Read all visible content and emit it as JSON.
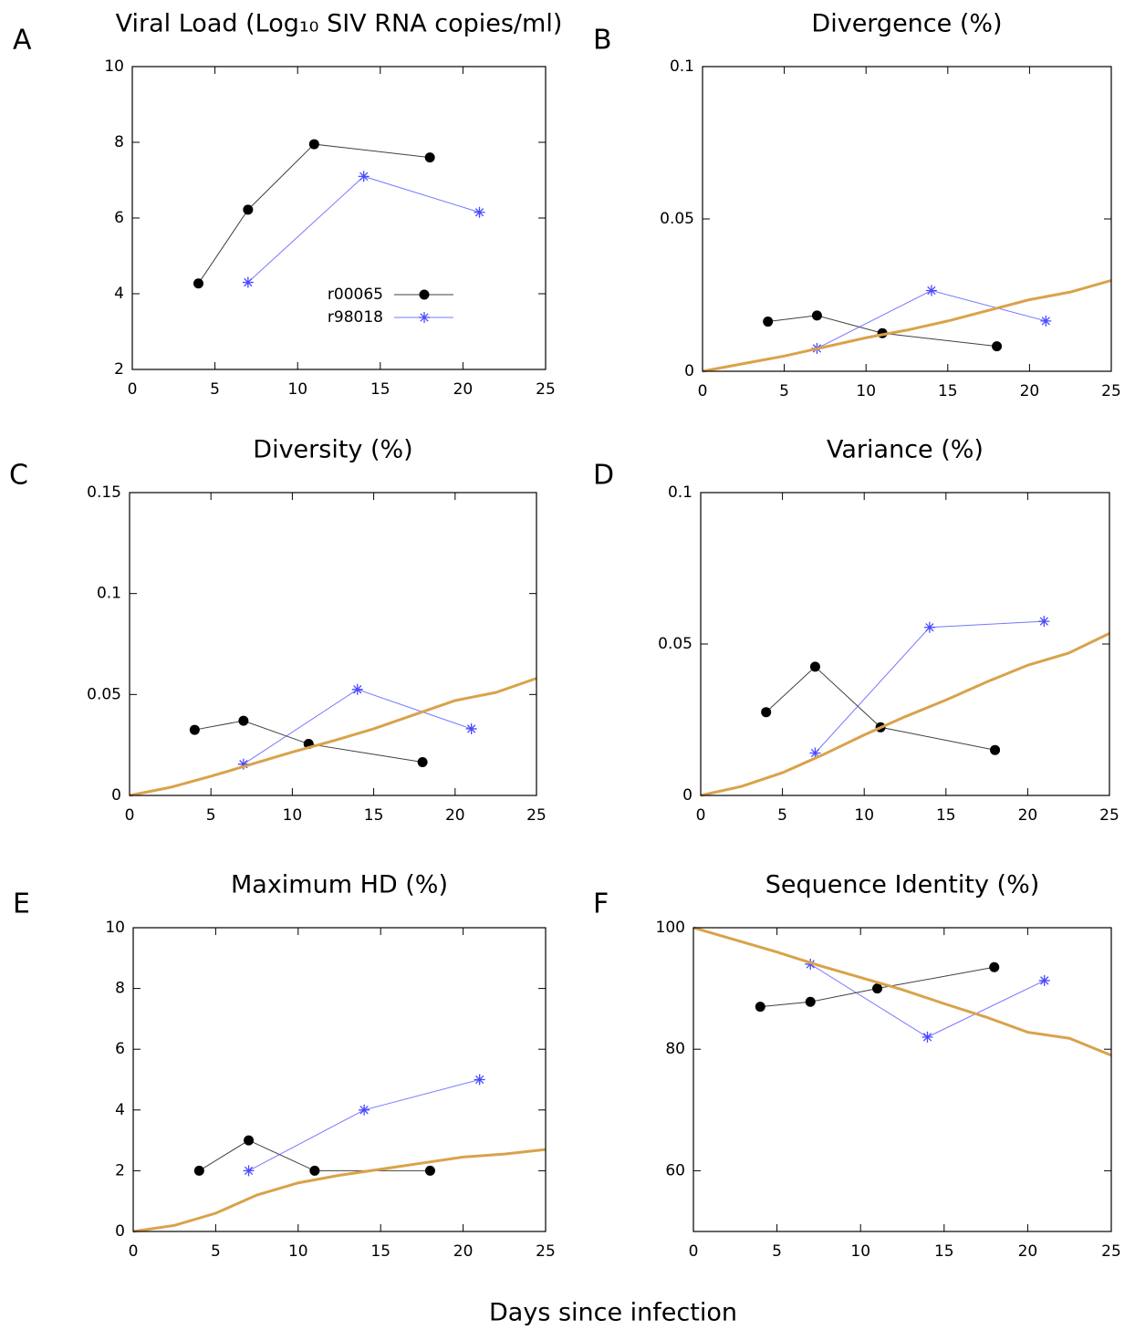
{
  "xlabel": "Days since infection",
  "chart_data": [
    {
      "type": "line",
      "panel": "A",
      "title": "Viral Load (Log₁₀ SIV RNA copies/ml)",
      "xlim": [
        0,
        25
      ],
      "xticks": [
        0,
        5,
        10,
        15,
        20,
        25
      ],
      "ylim": [
        2,
        10
      ],
      "yticks": [
        2,
        4,
        6,
        8,
        10
      ],
      "legend": "center",
      "series": [
        {
          "name": "r00065",
          "color": "#000000",
          "marker": "circle",
          "x": [
            4,
            7,
            11,
            18
          ],
          "values": [
            4.27,
            6.22,
            7.95,
            7.6
          ]
        },
        {
          "name": "r98018",
          "color": "#4a4aff",
          "marker": "star",
          "x": [
            7,
            14,
            21
          ],
          "values": [
            4.3,
            7.1,
            6.15
          ]
        }
      ]
    },
    {
      "type": "line",
      "panel": "B",
      "title": "Divergence (%)",
      "xlim": [
        0,
        25
      ],
      "xticks": [
        0,
        5,
        10,
        15,
        20,
        25
      ],
      "ylim": [
        0,
        0.1
      ],
      "yticks": [
        0,
        0.05,
        0.1
      ],
      "series": [
        {
          "color": "#000000",
          "marker": "circle",
          "x": [
            4,
            7,
            11,
            18
          ],
          "values": [
            0.0163,
            0.0183,
            0.0125,
            0.0082
          ]
        },
        {
          "color": "#4a4aff",
          "marker": "star",
          "x": [
            7,
            14,
            21
          ],
          "values": [
            0.0075,
            0.0265,
            0.0165
          ]
        },
        {
          "color": "#d9a24a",
          "marker": "none",
          "x": [
            0,
            2.5,
            5,
            7.5,
            10,
            12.5,
            15,
            17.5,
            20,
            22.5,
            25
          ],
          "values": [
            0,
            0.0025,
            0.005,
            0.008,
            0.011,
            0.0135,
            0.0165,
            0.02,
            0.0235,
            0.026,
            0.0298
          ]
        }
      ]
    },
    {
      "type": "line",
      "panel": "C",
      "title": "Diversity (%)",
      "xlim": [
        0,
        25
      ],
      "xticks": [
        0,
        5,
        10,
        15,
        20,
        25
      ],
      "ylim": [
        0,
        0.15
      ],
      "yticks": [
        0,
        0.05,
        0.1,
        0.15
      ],
      "series": [
        {
          "color": "#000000",
          "marker": "circle",
          "x": [
            4,
            7,
            11,
            18
          ],
          "values": [
            0.0325,
            0.037,
            0.0255,
            0.0165
          ]
        },
        {
          "color": "#4a4aff",
          "marker": "star",
          "x": [
            7,
            14,
            21
          ],
          "values": [
            0.0155,
            0.0525,
            0.033
          ]
        },
        {
          "color": "#d9a24a",
          "marker": "none",
          "x": [
            0,
            2.5,
            5,
            7.5,
            10,
            12.5,
            15,
            17.5,
            20,
            22.5,
            25
          ],
          "values": [
            0,
            0.004,
            0.0095,
            0.0155,
            0.0215,
            0.027,
            0.033,
            0.04,
            0.047,
            0.051,
            0.058
          ]
        }
      ]
    },
    {
      "type": "line",
      "panel": "D",
      "title": "Variance (%)",
      "xlim": [
        0,
        25
      ],
      "xticks": [
        0,
        5,
        10,
        15,
        20,
        25
      ],
      "ylim": [
        0,
        0.1
      ],
      "yticks": [
        0,
        0.05,
        0.1
      ],
      "series": [
        {
          "color": "#000000",
          "marker": "circle",
          "x": [
            4,
            7,
            11,
            18
          ],
          "values": [
            0.0275,
            0.0425,
            0.0225,
            0.015
          ]
        },
        {
          "color": "#4a4aff",
          "marker": "star",
          "x": [
            7,
            14,
            21
          ],
          "values": [
            0.014,
            0.0555,
            0.0575
          ]
        },
        {
          "color": "#d9a24a",
          "marker": "none",
          "x": [
            0,
            2.5,
            5,
            7.5,
            10,
            12.5,
            15,
            17.5,
            20,
            22.5,
            25
          ],
          "values": [
            0,
            0.003,
            0.0075,
            0.0135,
            0.02,
            0.026,
            0.0315,
            0.0375,
            0.043,
            0.047,
            0.0535
          ]
        }
      ]
    },
    {
      "type": "line",
      "panel": "E",
      "title": "Maximum HD (%)",
      "xlim": [
        0,
        25
      ],
      "xticks": [
        0,
        5,
        10,
        15,
        20,
        25
      ],
      "ylim": [
        0,
        10
      ],
      "yticks": [
        0,
        2,
        4,
        6,
        8,
        10
      ],
      "series": [
        {
          "color": "#000000",
          "marker": "circle",
          "x": [
            4,
            7,
            11,
            18
          ],
          "values": [
            2,
            3,
            2,
            2
          ]
        },
        {
          "color": "#4a4aff",
          "marker": "star",
          "x": [
            7,
            14,
            21
          ],
          "values": [
            2,
            4,
            5
          ]
        },
        {
          "color": "#d9a24a",
          "marker": "none",
          "x": [
            0,
            2.5,
            5,
            7.5,
            10,
            12.5,
            15,
            17.5,
            20,
            22.5,
            25
          ],
          "values": [
            0,
            0.2,
            0.6,
            1.2,
            1.6,
            1.85,
            2.05,
            2.25,
            2.45,
            2.55,
            2.7
          ]
        }
      ]
    },
    {
      "type": "line",
      "panel": "F",
      "title": "Sequence Identity (%)",
      "xlim": [
        0,
        25
      ],
      "xticks": [
        0,
        5,
        10,
        15,
        20,
        25
      ],
      "ylim": [
        50,
        100
      ],
      "yticks": [
        60,
        80,
        100
      ],
      "series": [
        {
          "color": "#000000",
          "marker": "circle",
          "x": [
            4,
            7,
            11,
            18
          ],
          "values": [
            87,
            87.8,
            90,
            93.5
          ]
        },
        {
          "color": "#4a4aff",
          "marker": "star",
          "x": [
            7,
            14,
            21
          ],
          "values": [
            94,
            82,
            91.3
          ]
        },
        {
          "color": "#d9a24a",
          "marker": "none",
          "x": [
            0,
            2.5,
            5,
            7.5,
            10,
            12.5,
            15,
            17.5,
            20,
            22.5,
            25
          ],
          "values": [
            100,
            98,
            96,
            93.8,
            91.8,
            89.8,
            87.5,
            85.3,
            82.8,
            81.8,
            79
          ]
        }
      ]
    }
  ]
}
